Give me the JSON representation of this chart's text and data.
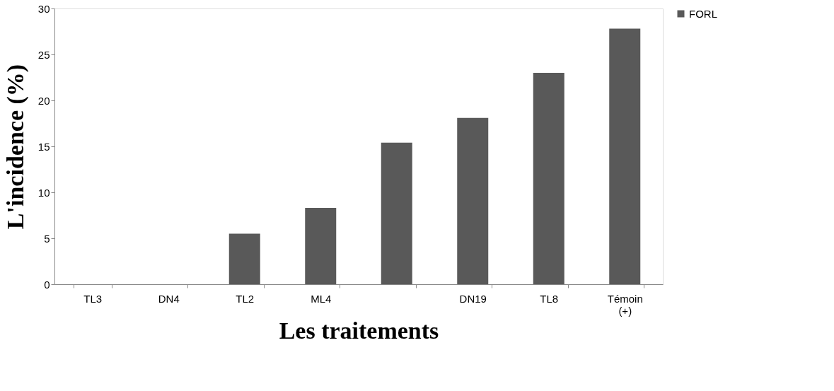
{
  "chart_data": {
    "type": "bar",
    "xlabel": "Les traitements",
    "ylabel": "L'incidence (%)",
    "categories": [
      "TL3",
      "DN4",
      "TL2",
      "ML4",
      null,
      "DN19",
      "TL8",
      "Témoin (+)"
    ],
    "series": [
      {
        "name": "FORL",
        "color": "#595959",
        "values": [
          0,
          0,
          5.5,
          8.3,
          15.4,
          18.1,
          23,
          27.8
        ]
      }
    ],
    "ylim": [
      0,
      30
    ],
    "yticks": [
      0,
      5,
      10,
      15,
      20,
      25,
      30
    ],
    "grid": false,
    "legend": "top right"
  }
}
